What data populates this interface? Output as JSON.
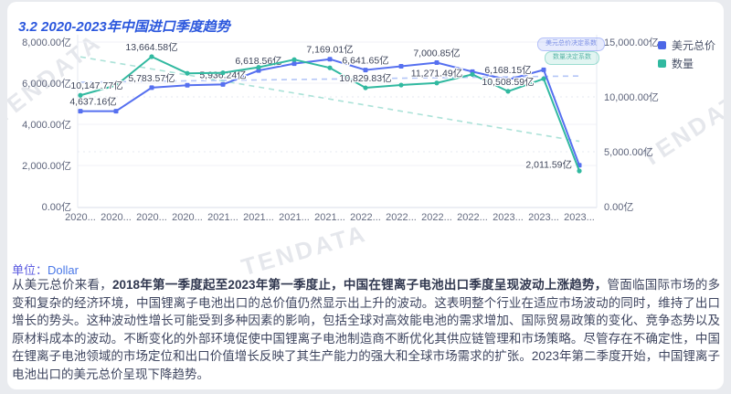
{
  "title": "3.2 2020-2023年中国进口季度趋势",
  "watermark": "TENDATA",
  "unit": {
    "label": "单位：",
    "value": "Dollar"
  },
  "trend_buttons": [
    {
      "label": "美元总价决定系数",
      "color": "#5670f0"
    },
    {
      "label": "数量决定系数",
      "color": "#31b9a0"
    }
  ],
  "legend": [
    {
      "label": "美元总价",
      "color": "#4d67e6"
    },
    {
      "label": "数量",
      "color": "#31b9a0"
    }
  ],
  "paragraph": {
    "prefix": "从美元总价来看，",
    "bold": "2018年第一季度起至2023年第一季度止，中国在锂离子电池出口季度呈现波动上涨趋势，",
    "rest": "管面临国际市场的多变和复杂的经济环境，中国锂离子电池出口的总价值仍然显示出上升的波动。这表明整个行业在适应市场波动的同时，维持了出口增长的势头。这种波动性增长可能受到多种因素的影响，包括全球对高效能电池的需求增加、国际贸易政策的变化、竞争态势以及原材料成本的波动。不断变化的外部环境促使中国锂离子电池制造商不断优化其供应链管理和市场策略。尽管存在不确定性，中国在锂离子电池领域的市场定位和出口价值增长反映了其生产能力的强大和全球市场需求的扩张。2023年第二季度开始，中国锂离子电池出口的美元总价呈现下降趋势。"
  },
  "chart_data": {
    "type": "line",
    "categories": [
      "2020...",
      "2020...",
      "2020...",
      "2020...",
      "2021...",
      "2021...",
      "2021...",
      "2021...",
      "2022...",
      "2022...",
      "2022...",
      "2022...",
      "2023...",
      "2023...",
      "2023..."
    ],
    "left_axis": {
      "min": 0,
      "max": 8000,
      "ticks": [
        {
          "value": 8000,
          "label": "8,000.00亿"
        },
        {
          "value": 6000,
          "label": "6,000.00亿"
        },
        {
          "value": 4000,
          "label": "4,000.00亿"
        },
        {
          "value": 2000,
          "label": "2,000.00亿"
        },
        {
          "value": 0,
          "label": "0.00亿"
        }
      ]
    },
    "right_axis": {
      "min": 0,
      "max": 15000,
      "ticks": [
        {
          "value": 15000,
          "label": "15,000.00亿"
        },
        {
          "value": 10000,
          "label": "10,000.00亿"
        },
        {
          "value": 5000,
          "label": "5,000.00亿"
        },
        {
          "value": 0,
          "label": "0.00亿"
        }
      ]
    },
    "series": [
      {
        "name": "美元总价",
        "axis": "left",
        "color": "#5670f0",
        "symbol": "square",
        "values": [
          4637.16,
          4640,
          5783.57,
          5900,
          5936.24,
          6618.56,
          6950,
          7169.01,
          6641.65,
          6820,
          7000.85,
          6560,
          6168.15,
          6650,
          2011.59
        ],
        "labels": {
          "0": "4,637.16亿",
          "2": "5,783.57亿",
          "4": "5,936.24亿",
          "5": "6,618.56亿",
          "7": "7,169.01亿",
          "8": "6,641.65亿",
          "10": "7,000.85亿",
          "12": "6,168.15亿",
          "14": "2,011.59亿"
        },
        "label_dx": {
          "0": 14
        },
        "label_pos": {
          "14": "left"
        }
      },
      {
        "name": "数量",
        "axis": "right",
        "color": "#31b9a0",
        "symbol": "circle",
        "values": [
          10147.77,
          11050,
          13664.58,
          12150,
          12200,
          12700,
          13400,
          12650,
          10829.83,
          11080,
          11271.49,
          12050,
          10508.59,
          11650,
          3250
        ],
        "labels": {
          "0": "10,147.77亿",
          "2": "13,664.58亿",
          "8": "10,829.83亿",
          "10": "11,271.49亿",
          "12": "10,508.59亿"
        },
        "label_dx": {
          "0": 18
        },
        "label_pos": {}
      }
    ],
    "trendlines": [
      {
        "series": "美元总价",
        "axis": "left",
        "color": "#9bb4f5",
        "start_value": 6050,
        "end_value": 6350
      },
      {
        "series": "数量",
        "axis": "right",
        "color": "#8fd9cb",
        "start_value": 13650,
        "end_value": 5950
      }
    ],
    "legend_position": "top-right",
    "grid": true
  }
}
